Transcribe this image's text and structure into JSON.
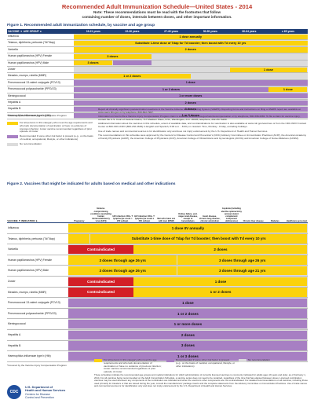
{
  "header": {
    "title": "Recommended Adult Immunization Schedule—United States - 2014",
    "note1": "Note: These recommendations must be read with the footnotes that follow",
    "note2": "containing number of doses, intervals between doses, and other important information."
  },
  "figure1": {
    "title": "Figure 1. Recommended adult immunization schedule, by vaccine and age group",
    "vaccine_header": "VACCINE ▼",
    "age_header": "AGE GROUP ►",
    "ages": [
      "19-21 years",
      "22-26 years",
      "27-49 years",
      "50-59 years",
      "60-64 years",
      "≥ 65 years"
    ],
    "rows": [
      {
        "label": "Influenza",
        "bars": [
          {
            "s": 0,
            "e": 6,
            "c": "y",
            "t": "1 dose annually"
          }
        ]
      },
      {
        "label": "Tetanus, diphtheria, pertussis (Td/Tdap)",
        "bars": [
          {
            "s": 0,
            "e": 6,
            "c": "y",
            "t": "Substitute 1-time dose of Tdap for Td booster; then boost with Td every 10 yrs"
          }
        ]
      },
      {
        "label": "Varicella",
        "bars": [
          {
            "s": 0,
            "e": 6,
            "c": "y",
            "t": "2 doses"
          }
        ]
      },
      {
        "label": "Human papillomavirus (HPV) Female",
        "bars": [
          {
            "s": 0,
            "e": 2,
            "c": "y",
            "t": "3 doses"
          }
        ]
      },
      {
        "label": "Human papillomavirus (HPV) Male",
        "bars": [
          {
            "s": 0,
            "e": 1,
            "c": "y",
            "t": "3 doses"
          },
          {
            "s": 1,
            "e": 2,
            "c": "p",
            "t": ""
          }
        ]
      },
      {
        "label": "Zoster",
        "bars": [
          {
            "s": 4,
            "e": 6,
            "c": "y",
            "t": "1 dose"
          }
        ]
      },
      {
        "label": "Measles, mumps, rubella (MMR)",
        "bars": [
          {
            "s": 0,
            "e": 3,
            "c": "y",
            "t": "1 or 2 doses"
          }
        ]
      },
      {
        "label": "Pneumococcal 13-valent conjugate (PCV13)",
        "bars": [
          {
            "s": 0,
            "e": 6,
            "c": "p",
            "t": "1 dose"
          }
        ]
      },
      {
        "label": "Pneumococcal polysaccharide (PPSV23)",
        "bars": [
          {
            "s": 0,
            "e": 5,
            "c": "p",
            "t": "1 or 2 doses"
          },
          {
            "s": 5,
            "e": 6,
            "c": "y",
            "t": "1 dose"
          }
        ]
      },
      {
        "label": "Meningococcal",
        "bars": [
          {
            "s": 0,
            "e": 6,
            "c": "p",
            "t": "1 or more doses"
          }
        ]
      },
      {
        "label": "Hepatitis A",
        "bars": [
          {
            "s": 0,
            "e": 6,
            "c": "p",
            "t": "2 doses"
          }
        ]
      },
      {
        "label": "Hepatitis B",
        "bars": [
          {
            "s": 0,
            "e": 6,
            "c": "p",
            "t": "3 doses"
          }
        ]
      },
      {
        "label": "Haemophilus influenzae type b (Hib)",
        "bars": [
          {
            "s": 0,
            "e": 6,
            "c": "p",
            "t": "1 or 3 doses"
          }
        ]
      }
    ],
    "footnote": "*Covered by the Vaccine Injury Compensation Program",
    "legend": [
      {
        "c": "y",
        "t": "For all persons in this category who meet the age requirements and who lack documentation of vaccination or have no evidence of previous infection; zoster vaccine recommended regardless of prior episode of zoster"
      },
      {
        "c": "p",
        "t": "Recommended if some other risk factor is present (e.g., on the basis of medical, occupational, lifestyle, or other indications)"
      },
      {
        "c": "g",
        "t": "No recommendation"
      }
    ],
    "info": [
      "Report all clinically significant postvaccination reactions to the Vaccine Adverse Event Reporting System (VAERS). Reporting forms and instructions on filing a VAERS report are available at www.vaers.hhs.gov or by telephone, 800-822-7967.",
      "Information on how to file a Vaccine Injury Compensation Program claim is available at www.hrsa.gov/vaccinecompensation or by telephone, 800-338-2382. To file a claim for vaccine injury, contact the U.S. Court of Federal Claims, 717 Madison Place, N.W., Washington, D.C. 20005; telephone, 202-357-6400.",
      "Additional information about the vaccines in this schedule, extent of available data, and contraindications for vaccination is also available at www.cdc.gov/vaccines or from the CDC-INFO Contact Center at 800-CDC-INFO (800-232-4636) in English and Spanish, 8:00 a.m. - 8:00 p.m. Eastern Time, Monday - Friday, excluding holidays.",
      "Use of trade names and commercial sources is for identification only and does not imply endorsement by the U.S. Department of Health and Human Services.",
      "The recommendations in this schedule were approved by the Centers for Disease Control and Prevention's (CDC) Advisory Committee on Immunization Practices (ACIP), the American Academy of Family Physicians (AAFP), the American College of Physicians (ACP), American College of Obstetricians and Gynecologists (ACOG) and American College of Nurse-Midwives (ACNM)."
    ]
  },
  "figure2": {
    "title": "Figure 2. Vaccines that might be indicated for adults based on medical and other indications",
    "vaccine_header": "VACCINE ▼",
    "indication_header": "INDICATION ►",
    "columns": [
      "Pregnancy",
      "Immuno-compromising conditions (excluding human immunodeficiency virus [HIV])",
      "HIV infection CD4+ T lymphocyte count < 200 cells/μL",
      "HIV infection CD4+ T lymphocyte count ≥ 200 cells/μL",
      "Men who have sex with men (MSM)",
      "Kidney failure, end-stage renal disease, receipt of hemodialysis",
      "Heart disease, chronic lung disease, chronic alcoholism",
      "Asplenia (including elective splenectomy and persistent complement component deficiencies)",
      "Chronic liver disease",
      "Diabetes",
      "Healthcare personnel"
    ],
    "rows": [
      {
        "label": "Influenza",
        "bars": [
          {
            "s": 0,
            "e": 11,
            "c": "y",
            "t": "1 dose IIV annually"
          }
        ]
      },
      {
        "label": "Tetanus, diphtheria, pertussis (Td/Tdap)",
        "bars": [
          {
            "s": 0,
            "e": 1,
            "c": "y",
            "t": ""
          },
          {
            "s": 1,
            "e": 11,
            "c": "y",
            "t": "Substitute 1-time dose of Tdap for Td booster; then boost with Td every 10 yrs"
          }
        ]
      },
      {
        "label": "Varicella",
        "bars": [
          {
            "s": 0,
            "e": 3,
            "c": "r",
            "t": "Contraindicated"
          },
          {
            "s": 3,
            "e": 11,
            "c": "y",
            "t": "2 doses"
          }
        ]
      },
      {
        "label": "Human papillomavirus (HPV) Female",
        "bars": [
          {
            "s": 0,
            "e": 5,
            "c": "y",
            "t": "3 doses through age 26 yrs"
          },
          {
            "s": 5,
            "e": 11,
            "c": "y",
            "t": "3 doses through age 26 yrs"
          }
        ]
      },
      {
        "label": "Human papillomavirus (HPV) Male",
        "bars": [
          {
            "s": 0,
            "e": 5,
            "c": "y",
            "t": "3 doses through age 26 yrs"
          },
          {
            "s": 5,
            "e": 11,
            "c": "y",
            "t": "3 doses through age 21 yrs"
          }
        ]
      },
      {
        "label": "Zoster",
        "bars": [
          {
            "s": 0,
            "e": 3,
            "c": "r",
            "t": "Contraindicated"
          },
          {
            "s": 3,
            "e": 11,
            "c": "y",
            "t": "1 dose"
          }
        ]
      },
      {
        "label": "Measles, mumps, rubella (MMR)",
        "bars": [
          {
            "s": 0,
            "e": 3,
            "c": "r",
            "t": "Contraindicated"
          },
          {
            "s": 3,
            "e": 11,
            "c": "y",
            "t": "1 or 2 doses"
          }
        ]
      },
      {
        "label": "Pneumococcal 13-valent conjugate (PCV13)",
        "bars": [
          {
            "s": 0,
            "e": 11,
            "c": "p",
            "t": "1 dose"
          }
        ]
      },
      {
        "label": "Pneumococcal polysaccharide (PPSV23)",
        "bars": [
          {
            "s": 0,
            "e": 11,
            "c": "p",
            "t": "1 or 2 doses"
          }
        ]
      },
      {
        "label": "Meningococcal",
        "bars": [
          {
            "s": 0,
            "e": 11,
            "c": "p",
            "t": "1 or more doses"
          }
        ]
      },
      {
        "label": "Hepatitis A",
        "bars": [
          {
            "s": 0,
            "e": 11,
            "c": "p",
            "t": "2 doses"
          }
        ]
      },
      {
        "label": "Hepatitis B",
        "bars": [
          {
            "s": 0,
            "e": 11,
            "c": "p",
            "t": "3 doses"
          }
        ]
      },
      {
        "label": "Haemophilus influenzae type b (Hib)",
        "bars": [
          {
            "s": 0,
            "e": 11,
            "c": "p",
            "t": "1 or 3 doses"
          }
        ]
      }
    ],
    "legend": [
      {
        "c": "y",
        "t": "For all persons in this category who meet the age requirements and who lack documentation of vaccination or have no evidence of previous infection; zoster vaccine recommended regardless of prior episode of zoster"
      },
      {
        "c": "p",
        "t": "Recommended if some other risk factor is present (e.g., on the basis of medical, occupational, lifestyle, or other indications)"
      },
      {
        "c": "g",
        "t": "No recommendation"
      }
    ],
    "footnote": "*Covered by the Vaccine Injury Compensation Program",
    "footer_text": "These schedules indicate the recommended age groups and medical indications for which administration of currently licensed vaccines is commonly indicated for adults ages 19 years and older, as of February 1, 2014. For all vaccines being recommended on the Adult Immunization Schedule, a vaccine series does not need to be restarted, regardless of the time that has elapsed between doses. Licensed combination vaccines may be used whenever any components of the combination are indicated and when the vaccine's other components are not contraindicated. For detailed recommendations on all vaccines, including those used primarily for travelers or that are issued during the year, consult the manufacturers' package inserts and the complete statements from the Advisory Committee on Immunization Practices. Use of trade names and commercial sources is for identification only and does not imply endorsement by the U.S. Department of Health and Human Services."
  },
  "footer": {
    "logo": "CDC",
    "org1": "U.S. Department of",
    "org2": "Health and Human Services",
    "org3": "Centers for Disease",
    "org4": "Control and Prevention"
  },
  "colors": {
    "y": "#fbd20c",
    "p": "#a77fc3",
    "g": "#dcdcdc",
    "r": "#d31f26",
    "navy": "#1f3e76"
  }
}
